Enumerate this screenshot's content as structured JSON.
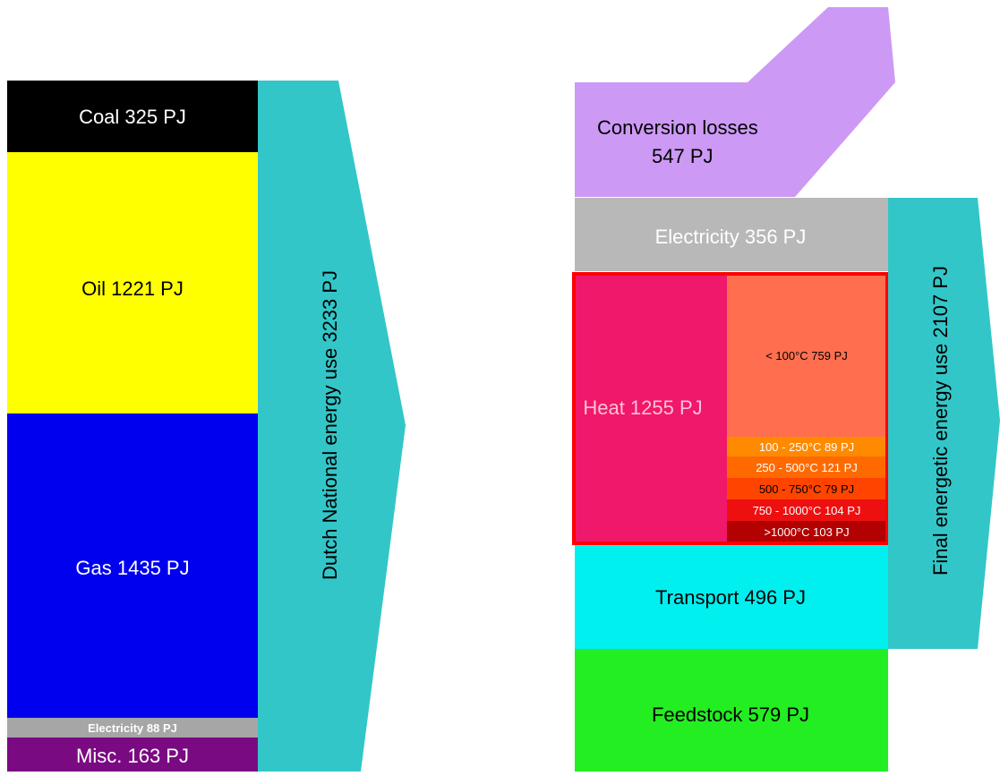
{
  "colors": {
    "coal": "#000000",
    "oil": "#ffff00",
    "gas": "#0000ee",
    "electricity_in": "#a6a6a6",
    "misc": "#7a0a82",
    "arrow": "#33c6c8",
    "losses": "#cc99f5",
    "electricity_out": "#b8b8b8",
    "heat": "#f0186a",
    "heat_border": "#ff0000",
    "t_lt100": "#ff6f4f",
    "t_100_250": "#ff8a00",
    "t_250_500": "#ff6a00",
    "t_500_750": "#ff4400",
    "t_750_1000": "#ee1010",
    "t_gt1000": "#b30000",
    "transport": "#00f0f0",
    "feedstock": "#22ee22"
  },
  "left": {
    "coal": "Coal 325 PJ",
    "oil": "Oil 1221 PJ",
    "gas": "Gas 1435 PJ",
    "electricity": "Electricity 88 PJ",
    "misc": "Misc. 163 PJ",
    "total": "Dutch National energy use 3233 PJ"
  },
  "right": {
    "losses_line1": "Conversion losses",
    "losses_line2": "547 PJ",
    "electricity": "Electricity 356 PJ",
    "heat": "Heat 1255 PJ",
    "temps": {
      "lt100": "< 100°C   759 PJ",
      "t100_250": "100 - 250°C   89 PJ",
      "t250_500": "250 - 500°C 121 PJ",
      "t500_750": "500 - 750°C    79 PJ",
      "t750_1000": "750 - 1000°C 104 PJ",
      "gt1000": ">1000°C   103 PJ"
    },
    "transport": "Transport 496 PJ",
    "feedstock": "Feedstock 579 PJ",
    "total": "Final energetic energy use 2107 PJ"
  }
}
